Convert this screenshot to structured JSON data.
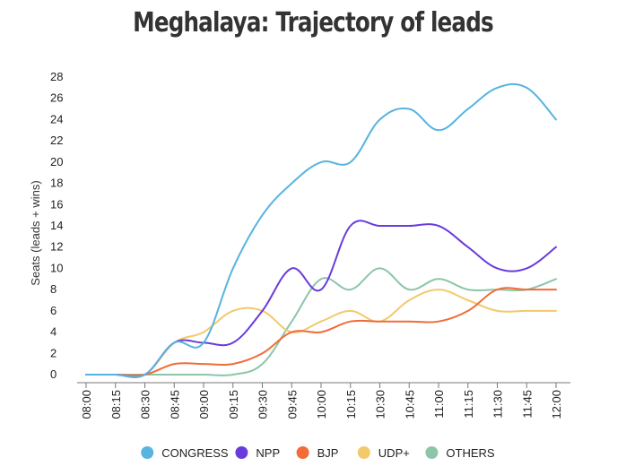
{
  "chart_data": {
    "type": "line",
    "title": "Meghalaya: Trajectory of leads",
    "xlabel": "",
    "ylabel": "Seats (leads + wins)",
    "ylim": [
      0,
      28
    ],
    "yticks": [
      0,
      2,
      4,
      6,
      8,
      10,
      12,
      14,
      16,
      18,
      20,
      22,
      24,
      26,
      28
    ],
    "categories": [
      "08:00",
      "08:15",
      "08:30",
      "08:45",
      "09:00",
      "09:15",
      "09:30",
      "09:45",
      "10:00",
      "10:15",
      "10:30",
      "10:45",
      "11:00",
      "11:15",
      "11:30",
      "11:45",
      "12:00"
    ],
    "grid": false,
    "legend_position": "bottom",
    "series": [
      {
        "name": "CONGRESS",
        "color": "#56B4E0",
        "values": [
          0,
          0,
          0,
          3,
          3,
          10,
          15,
          18,
          20,
          20,
          24,
          25,
          23,
          25,
          27,
          27,
          24
        ]
      },
      {
        "name": "NPP",
        "color": "#6A3BDB",
        "values": [
          0,
          0,
          0,
          3,
          3,
          3,
          6,
          10,
          8,
          14,
          14,
          14,
          14,
          12,
          10,
          10,
          12
        ]
      },
      {
        "name": "BJP",
        "color": "#F26B38",
        "values": [
          0,
          0,
          0,
          1,
          1,
          1,
          2,
          4,
          4,
          5,
          5,
          5,
          5,
          6,
          8,
          8,
          8
        ]
      },
      {
        "name": "UDP+",
        "color": "#F2C96B",
        "values": [
          0,
          0,
          0,
          3,
          4,
          6,
          6,
          4,
          5,
          6,
          5,
          7,
          8,
          7,
          6,
          6,
          6
        ]
      },
      {
        "name": "OTHERS",
        "color": "#8CC5A8",
        "values": [
          0,
          0,
          0,
          0,
          0,
          0,
          1,
          5,
          9,
          8,
          10,
          8,
          9,
          8,
          8,
          8,
          9
        ]
      }
    ]
  }
}
